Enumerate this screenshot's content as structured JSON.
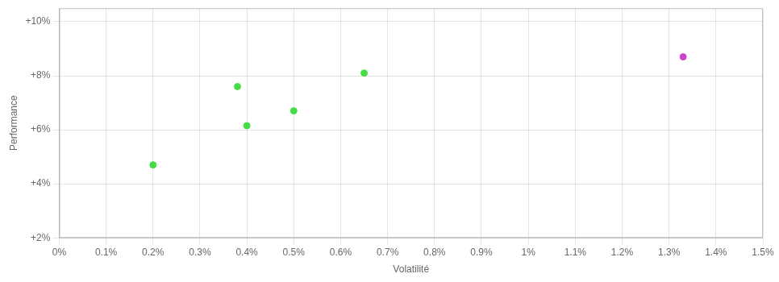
{
  "chart_data": {
    "type": "scatter",
    "x_label": "Volatilité",
    "y_label": "Performance",
    "xlim": [
      0.0,
      1.5
    ],
    "ylim": [
      2.0,
      10.5
    ],
    "xticks": [
      {
        "value": 0.0,
        "label": "0%"
      },
      {
        "value": 0.1,
        "label": "0.1%"
      },
      {
        "value": 0.2,
        "label": "0.2%"
      },
      {
        "value": 0.3,
        "label": "0.3%"
      },
      {
        "value": 0.4,
        "label": "0.4%"
      },
      {
        "value": 0.5,
        "label": "0.5%"
      },
      {
        "value": 0.6,
        "label": "0.6%"
      },
      {
        "value": 0.7,
        "label": "0.7%"
      },
      {
        "value": 0.8,
        "label": "0.8%"
      },
      {
        "value": 0.9,
        "label": "0.9%"
      },
      {
        "value": 1.0,
        "label": "1%"
      },
      {
        "value": 1.1,
        "label": "1.1%"
      },
      {
        "value": 1.2,
        "label": "1.2%"
      },
      {
        "value": 1.3,
        "label": "1.3%"
      },
      {
        "value": 1.4,
        "label": "1.4%"
      },
      {
        "value": 1.5,
        "label": "1.5%"
      }
    ],
    "yticks": [
      {
        "value": 2.0,
        "label": "+2%"
      },
      {
        "value": 4.0,
        "label": "+4%"
      },
      {
        "value": 6.0,
        "label": "+6%"
      },
      {
        "value": 8.0,
        "label": "+8%"
      },
      {
        "value": 10.0,
        "label": "+10%"
      }
    ],
    "grid": true,
    "series": [
      {
        "color": "#44dd44",
        "x": [
          0.2,
          0.38,
          0.4,
          0.5,
          0.65
        ],
        "values": [
          4.7,
          7.6,
          6.15,
          6.7,
          8.1
        ]
      },
      {
        "color": "#cc44cc",
        "x": [
          1.33
        ],
        "values": [
          8.7
        ]
      }
    ]
  }
}
